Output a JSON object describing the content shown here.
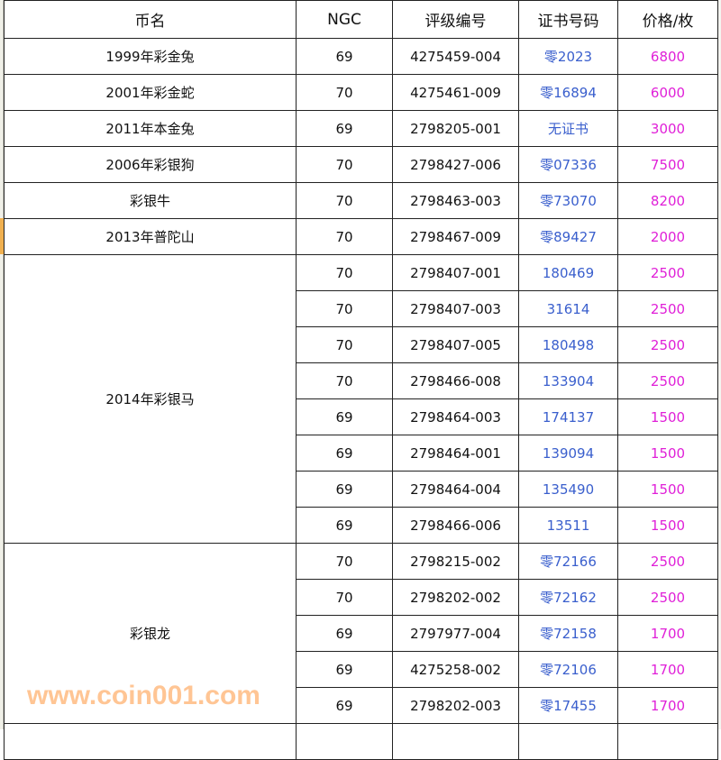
{
  "headers": [
    "币名",
    "NGC",
    "评级编号",
    "证书号码",
    "价格/枚"
  ],
  "colors": {
    "cert": "#3a5fcd",
    "price": "#e020d8"
  },
  "groups": [
    {
      "name": "1999年彩金兔",
      "rows": [
        [
          "69",
          "4275459-004",
          "零2023",
          "6800"
        ]
      ]
    },
    {
      "name": "2001年彩金蛇",
      "rows": [
        [
          "70",
          "4275461-009",
          "零16894",
          "6000"
        ]
      ]
    },
    {
      "name": "2011年本金兔",
      "rows": [
        [
          "69",
          "2798205-001",
          "无证书",
          "3000"
        ]
      ]
    },
    {
      "name": "2006年彩银狗",
      "rows": [
        [
          "70",
          "2798427-006",
          "零07336",
          "7500"
        ]
      ]
    },
    {
      "name": "彩银牛",
      "rows": [
        [
          "70",
          "2798463-003",
          "零73070",
          "8200"
        ]
      ]
    },
    {
      "name": "2013年普陀山",
      "rows": [
        [
          "70",
          "2798467-009",
          "零89427",
          "2000"
        ]
      ]
    },
    {
      "name": "2014年彩银马",
      "rows": [
        [
          "70",
          "2798407-001",
          "180469",
          "2500"
        ],
        [
          "70",
          "2798407-003",
          "31614",
          "2500"
        ],
        [
          "70",
          "2798407-005",
          "180498",
          "2500"
        ],
        [
          "70",
          "2798466-008",
          "133904",
          "2500"
        ],
        [
          "69",
          "2798464-003",
          "174137",
          "1500"
        ],
        [
          "69",
          "2798464-001",
          "139094",
          "1500"
        ],
        [
          "69",
          "2798464-004",
          "135490",
          "1500"
        ],
        [
          "69",
          "2798466-006",
          "13511",
          "1500"
        ]
      ]
    },
    {
      "name": "彩银龙",
      "rows": [
        [
          "70",
          "2798215-002",
          "零72166",
          "2500"
        ],
        [
          "70",
          "2798202-002",
          "零72162",
          "2500"
        ],
        [
          "69",
          "2797977-004",
          "零72158",
          "1700"
        ],
        [
          "69",
          "4275258-002",
          "零72106",
          "1700"
        ],
        [
          "69",
          "2798202-003",
          "零17455",
          "1700"
        ]
      ]
    }
  ],
  "watermark": "www.coin001.com"
}
